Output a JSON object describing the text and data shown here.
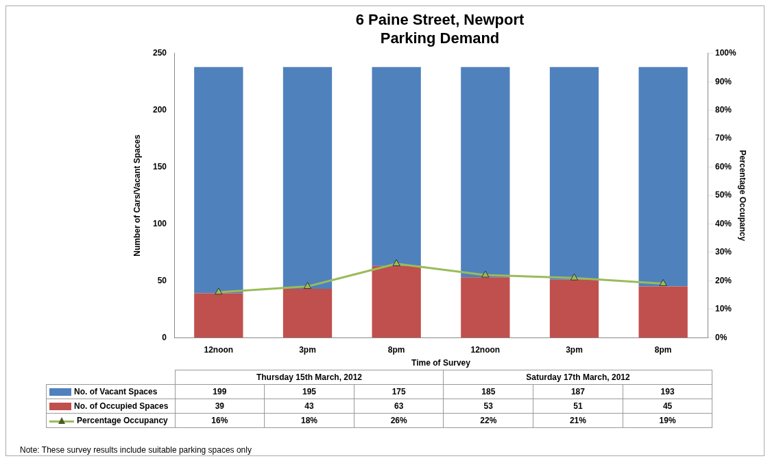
{
  "chart_data": {
    "type": "bar",
    "title": "6 Paine Street, Newport",
    "subtitle": "Parking Demand",
    "xlabel": "Time of Survey",
    "ylabel": "Number of Cars/Vacant Spaces",
    "y2label": "Percentage Occupancy",
    "categories": [
      "12noon",
      "3pm",
      "8pm",
      "12noon",
      "3pm",
      "8pm"
    ],
    "stacked": true,
    "series": [
      {
        "name": "No. of Occupied Spaces",
        "color": "#c0504d",
        "values": [
          39,
          43,
          63,
          53,
          51,
          45
        ],
        "value_labels": [
          "39",
          "43",
          "63",
          "53",
          "51",
          "45"
        ]
      },
      {
        "name": "No. of Vacant Spaces",
        "color": "#4f81bd",
        "values": [
          199,
          195,
          175,
          185,
          187,
          193
        ],
        "value_labels": [
          "199",
          "195",
          "175",
          "185",
          "187",
          "193"
        ]
      },
      {
        "name": "Percentage Occupancy",
        "type": "line",
        "axis": "y2",
        "color": "#9bbb59",
        "marker": "triangle",
        "values": [
          16,
          18,
          26,
          22,
          21,
          19
        ],
        "value_labels": [
          "16%",
          "18%",
          "26%",
          "22%",
          "21%",
          "19%"
        ]
      }
    ],
    "ylim": [
      0,
      250
    ],
    "yticks": [
      0,
      50,
      100,
      150,
      200,
      250
    ],
    "y2lim": [
      0,
      100
    ],
    "y2ticks": [
      {
        "value": 0,
        "label": "0%"
      },
      {
        "value": 10,
        "label": "10%"
      },
      {
        "value": 20,
        "label": "20%"
      },
      {
        "value": 30,
        "label": "30%"
      },
      {
        "value": 40,
        "label": "40%"
      },
      {
        "value": 50,
        "label": "50%"
      },
      {
        "value": 60,
        "label": "60%"
      },
      {
        "value": 70,
        "label": "70%"
      },
      {
        "value": 80,
        "label": "80%"
      },
      {
        "value": 90,
        "label": "90%"
      },
      {
        "value": 100,
        "label": "100%"
      }
    ],
    "grid": false,
    "legend": "bottom left",
    "annotations": [
      "Note:  These survey results include suitable parking spaces only",
      "Thursday 15th March, 2012",
      "Saturday 17th March, 2012"
    ]
  }
}
